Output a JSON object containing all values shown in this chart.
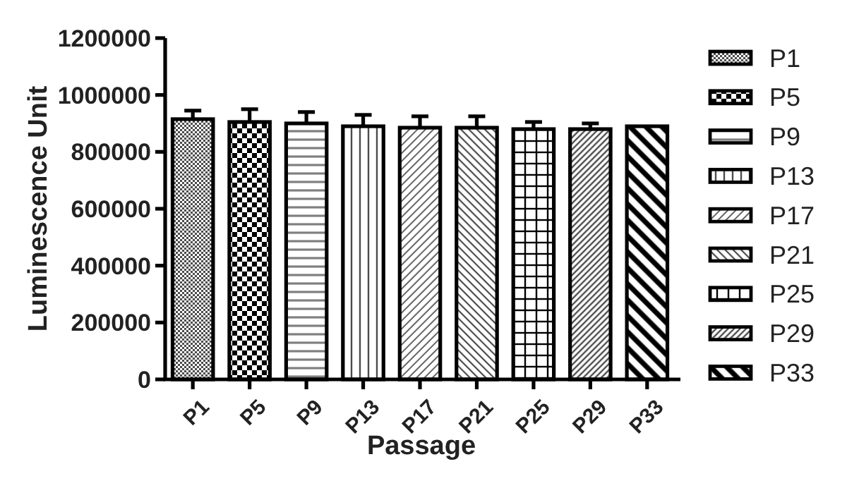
{
  "chart_data": {
    "type": "bar",
    "xlabel": "Passage",
    "ylabel": "Luminescence Unit",
    "categories": [
      "P1",
      "P5",
      "P9",
      "P13",
      "P17",
      "P21",
      "P25",
      "P29",
      "P33"
    ],
    "series": [
      {
        "name": "P1",
        "color": "#000000",
        "values": [
          915000,
          null,
          null,
          null,
          null,
          null,
          null,
          null,
          null
        ],
        "errors": [
          [
            915000,
            945000
          ],
          null,
          null,
          null,
          null,
          null,
          null,
          null,
          null
        ]
      },
      {
        "name": "P5",
        "color": "#000000",
        "values": [
          null,
          905000,
          null,
          null,
          null,
          null,
          null,
          null,
          null
        ],
        "errors": [
          null,
          [
            905000,
            950000
          ],
          null,
          null,
          null,
          null,
          null,
          null,
          null
        ]
      },
      {
        "name": "P9",
        "color": "#000000",
        "values": [
          null,
          null,
          900000,
          null,
          null,
          null,
          null,
          null,
          null
        ],
        "errors": [
          null,
          null,
          [
            900000,
            940000
          ],
          null,
          null,
          null,
          null,
          null,
          null
        ]
      },
      {
        "name": "P13",
        "color": "#000000",
        "values": [
          null,
          null,
          null,
          890000,
          null,
          null,
          null,
          null,
          null
        ],
        "errors": [
          null,
          null,
          null,
          [
            890000,
            930000
          ],
          null,
          null,
          null,
          null,
          null
        ]
      },
      {
        "name": "P17",
        "color": "#000000",
        "values": [
          null,
          null,
          null,
          null,
          885000,
          null,
          null,
          null,
          null
        ],
        "errors": [
          null,
          null,
          null,
          null,
          [
            885000,
            925000
          ],
          null,
          null,
          null,
          null
        ]
      },
      {
        "name": "P21",
        "color": "#000000",
        "values": [
          null,
          null,
          null,
          null,
          null,
          885000,
          null,
          null,
          null
        ],
        "errors": [
          null,
          null,
          null,
          null,
          null,
          [
            885000,
            925000
          ],
          null,
          null,
          null
        ]
      },
      {
        "name": "P25",
        "color": "#000000",
        "values": [
          null,
          null,
          null,
          null,
          null,
          null,
          880000,
          null,
          null
        ],
        "errors": [
          null,
          null,
          null,
          null,
          null,
          null,
          [
            880000,
            905000
          ],
          null,
          null
        ]
      },
      {
        "name": "P29",
        "color": "#000000",
        "values": [
          null,
          null,
          null,
          null,
          null,
          null,
          null,
          880000,
          null
        ],
        "errors": [
          null,
          null,
          null,
          null,
          null,
          null,
          null,
          [
            880000,
            900000
          ],
          null
        ]
      },
      {
        "name": "P33",
        "color": "#000000",
        "values": [
          null,
          null,
          null,
          null,
          null,
          null,
          null,
          null,
          890000
        ]
      }
    ],
    "ylim": [
      0,
      1200000
    ],
    "yticks": [
      0,
      200000,
      400000,
      600000,
      800000,
      1000000,
      1200000
    ],
    "legend": "right"
  }
}
